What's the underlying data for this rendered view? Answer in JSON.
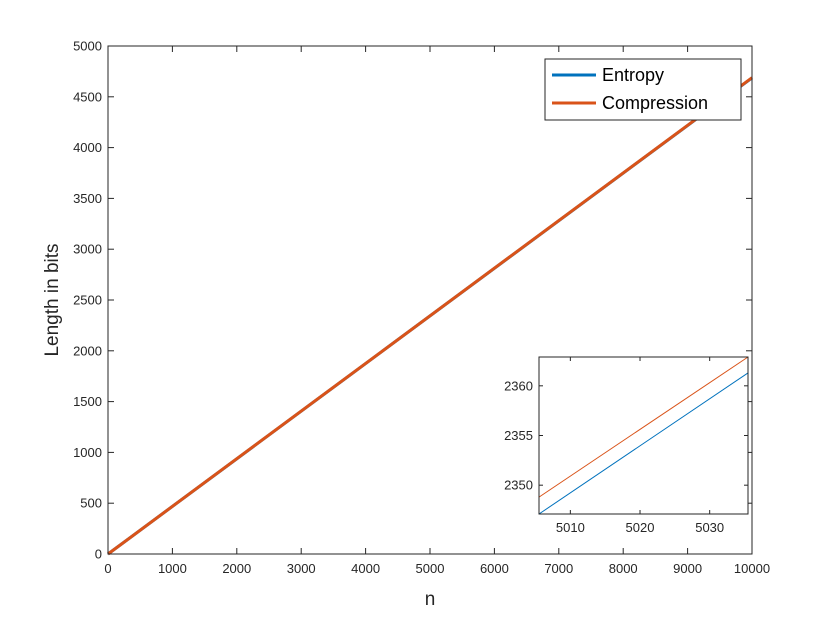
{
  "chart_data": {
    "main": {
      "type": "line",
      "xlabel": "n",
      "ylabel": "Length in bits",
      "xlim": [
        0,
        10000
      ],
      "ylim": [
        0,
        5000
      ],
      "xticks": [
        0,
        1000,
        2000,
        3000,
        4000,
        5000,
        6000,
        7000,
        8000,
        9000,
        10000
      ],
      "yticks": [
        0,
        500,
        1000,
        1500,
        2000,
        2500,
        3000,
        3500,
        4000,
        4500,
        5000
      ],
      "legend_position": "top-right",
      "grid": false,
      "series": [
        {
          "name": "Entropy",
          "color": "#0072BD",
          "x": [
            0,
            10000
          ],
          "y": [
            0,
            4686
          ]
        },
        {
          "name": "Compression",
          "color": "#D95319",
          "x": [
            0,
            10000
          ],
          "y": [
            0,
            4688
          ]
        }
      ]
    },
    "inset": {
      "type": "line",
      "xlim": [
        5005.5,
        5035.5
      ],
      "ylim": [
        2347.1,
        2362.9
      ],
      "xticks": [
        5010,
        5020,
        5030
      ],
      "yticks": [
        2350,
        2355,
        2360
      ],
      "grid": false,
      "series": [
        {
          "name": "Entropy",
          "color": "#0072BD",
          "x": [
            5005.5,
            5035.5
          ],
          "y": [
            2347.1,
            2361.3
          ]
        },
        {
          "name": "Compression",
          "color": "#D95319",
          "x": [
            5005.5,
            5035.5
          ],
          "y": [
            2348.8,
            2362.9
          ]
        }
      ]
    }
  }
}
